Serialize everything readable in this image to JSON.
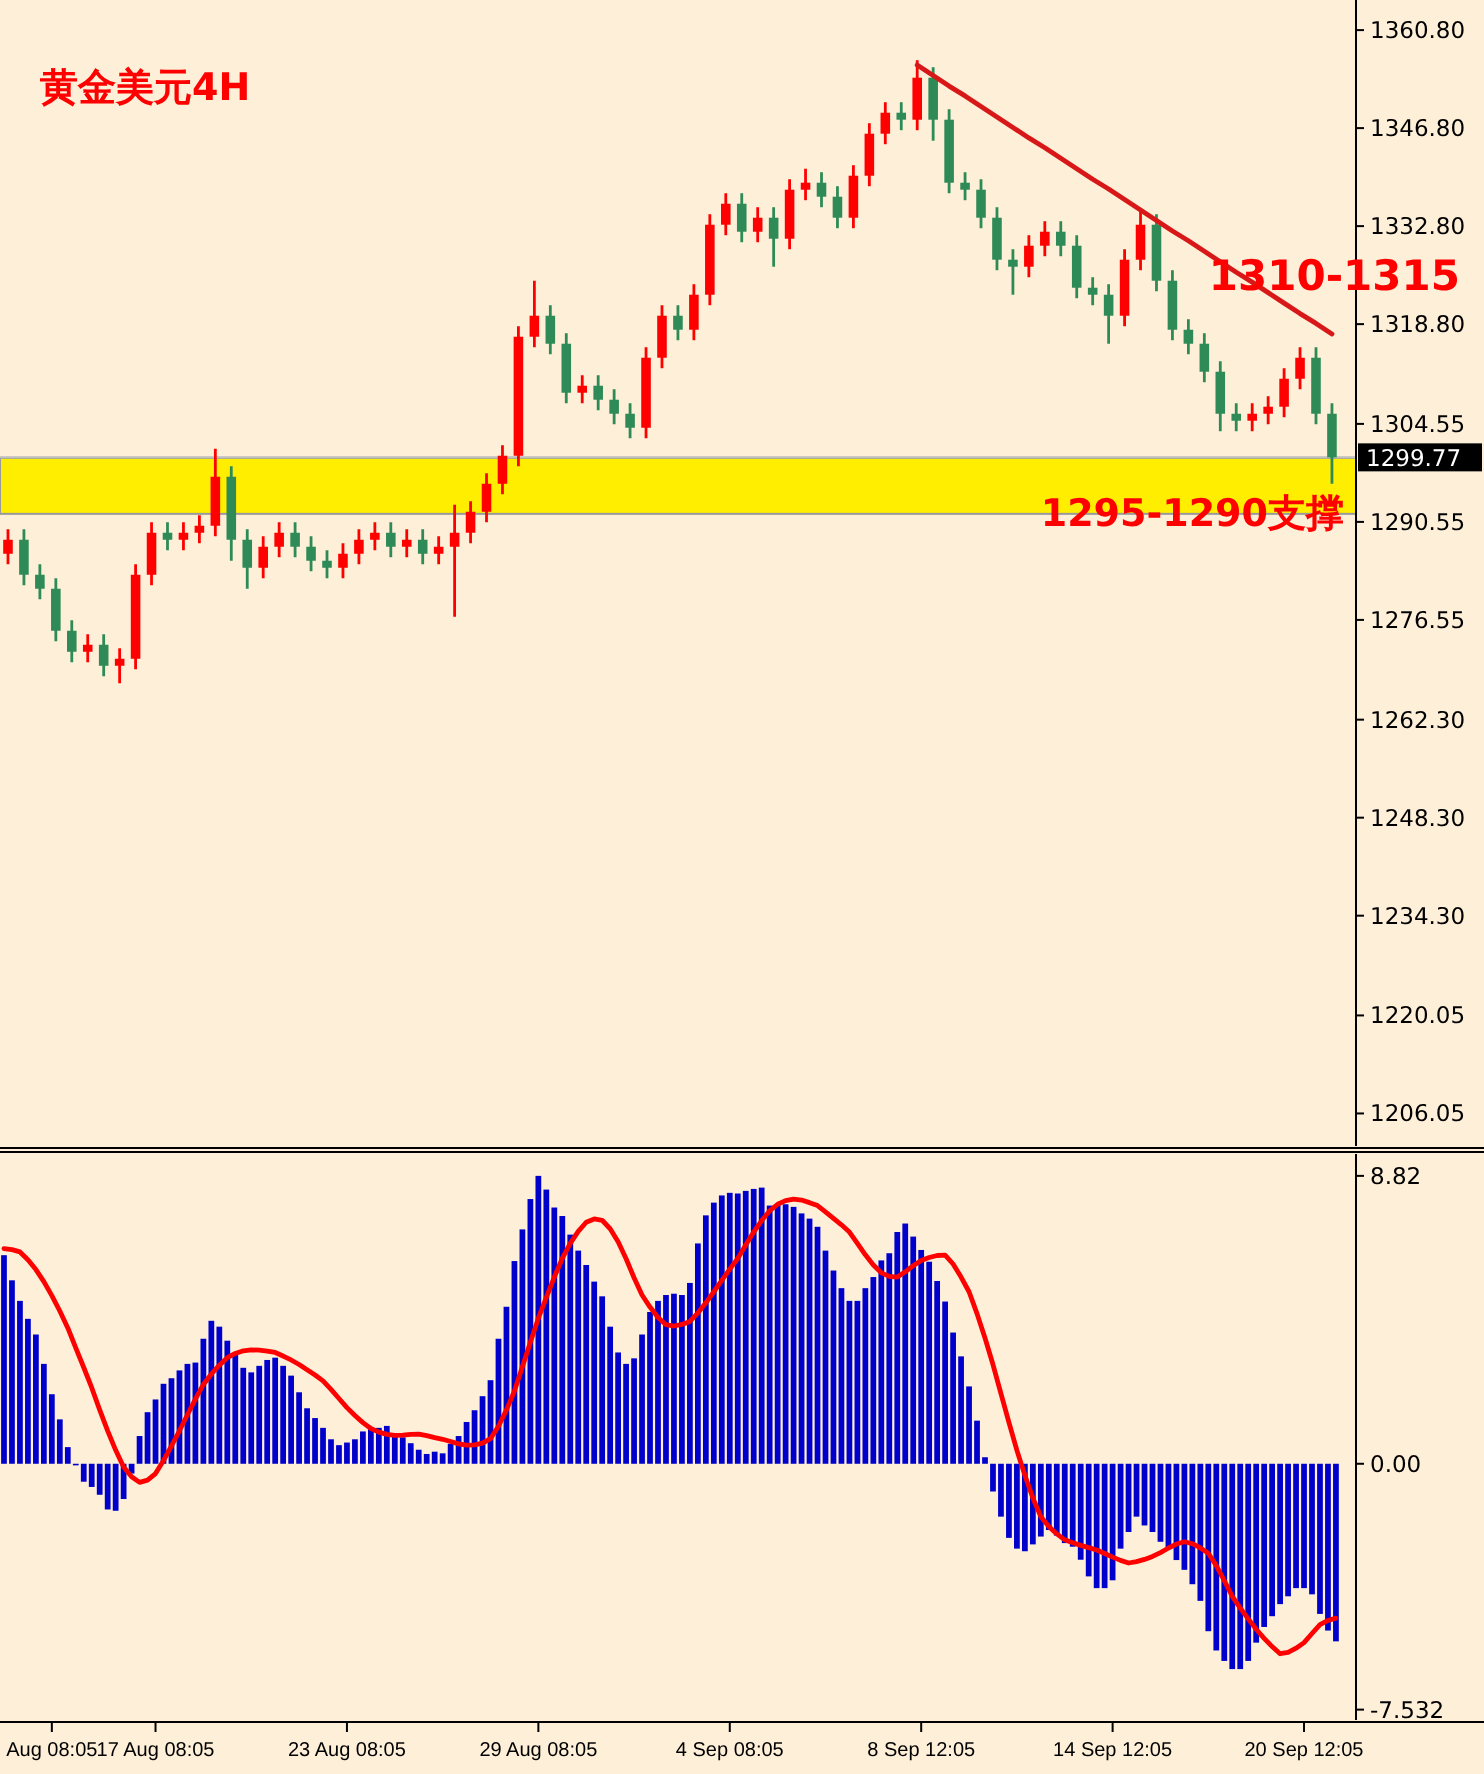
{
  "chart_data": [
    {
      "type": "candlestick",
      "title": "黄金美元4H",
      "annotations": [
        "1310-1315"
      ],
      "categories": [
        null,
        null,
        null,
        null,
        null,
        null,
        null,
        null,
        null,
        null,
        null,
        null,
        null,
        null,
        null,
        null,
        null,
        null,
        null,
        null,
        null,
        null,
        null,
        null,
        null,
        null,
        null,
        null,
        null,
        null,
        null,
        null,
        null,
        null,
        null,
        null,
        null,
        null,
        null,
        null,
        null,
        null,
        null,
        null,
        null,
        null,
        null,
        null,
        null,
        null,
        null,
        null,
        null,
        null,
        null,
        null,
        null,
        null,
        null,
        null,
        null,
        null,
        null,
        null,
        null,
        null,
        null,
        null,
        null,
        null,
        null,
        null,
        null,
        null,
        null,
        null,
        null,
        null,
        null,
        null,
        null,
        null,
        null,
        null
      ],
      "ylim": [
        1201.4,
        1365.1
      ],
      "tick_labels": "y",
      "yticks": [
        {
          "value": 1360.8,
          "label": "1360.80"
        },
        {
          "value": 1346.8,
          "label": "1346.80"
        },
        {
          "value": 1332.8,
          "label": "1332.80"
        },
        {
          "value": 1318.8,
          "label": "1318.80"
        },
        1304.55,
        1290.55,
        1276.55,
        {
          "value": 1262.3,
          "label": "1262.30"
        },
        {
          "value": 1248.3,
          "label": "1248.30"
        },
        {
          "value": 1234.3,
          "label": "1234.30"
        },
        1220.05,
        1206.05
      ],
      "ref_lines": [
        {
          "axis": "y",
          "value": 1299.77,
          "label": "1299.77",
          "color": "#c0c0c0"
        }
      ],
      "bands": [
        {
          "axis": "y",
          "from": 1291.7,
          "to": 1299.7,
          "label": "1295-1290支撑",
          "color": "#ffee00"
        }
      ],
      "series": [
        {
          "ohlc": [
            [
              1286,
              1289.5,
              1284.5,
              1288
            ],
            [
              1288,
              1289.5,
              1281.5,
              1283
            ],
            [
              1283,
              1284.5,
              1279.5,
              1281
            ],
            [
              1281,
              1282.5,
              1273.5,
              1275
            ],
            [
              1275,
              1276.5,
              1270.5,
              1272
            ],
            [
              1272,
              1274.5,
              1270.5,
              1273
            ],
            [
              1273,
              1274.5,
              1268.5,
              1270
            ],
            [
              1270,
              1272.5,
              1267.5,
              1271
            ],
            [
              1271,
              1284.5,
              1269.5,
              1283
            ],
            [
              1283,
              1290.5,
              1281.5,
              1289
            ],
            [
              1289,
              1290.5,
              1286.5,
              1288
            ],
            [
              1288,
              1290.5,
              1286.5,
              1289
            ],
            [
              1289,
              1291.5,
              1287.5,
              1290
            ],
            [
              1290,
              1301,
              1288.5,
              1297
            ],
            [
              1297,
              1298.5,
              1285,
              1288
            ],
            [
              1288,
              1289.5,
              1281,
              1284
            ],
            [
              1284,
              1288.5,
              1282.5,
              1287
            ],
            [
              1287,
              1290.5,
              1285.5,
              1289
            ],
            [
              1289,
              1290.5,
              1285.5,
              1287
            ],
            [
              1287,
              1288.5,
              1283.5,
              1285
            ],
            [
              1285,
              1286.5,
              1282.5,
              1284
            ],
            [
              1284,
              1287.5,
              1282.5,
              1286
            ],
            [
              1286,
              1289.5,
              1284.5,
              1288
            ],
            [
              1288,
              1290.5,
              1286.5,
              1289
            ],
            [
              1289,
              1290.5,
              1285.5,
              1287
            ],
            [
              1287,
              1289.5,
              1285.5,
              1288
            ],
            [
              1288,
              1289.5,
              1284.5,
              1286
            ],
            [
              1286,
              1288.5,
              1284.5,
              1287
            ],
            [
              1287,
              1293,
              1277,
              1289
            ],
            [
              1289,
              1293.5,
              1287.5,
              1292
            ],
            [
              1292,
              1297.5,
              1290.5,
              1296
            ],
            [
              1296,
              1301.5,
              1294.5,
              1300
            ],
            [
              1300,
              1318.5,
              1298.5,
              1317
            ],
            [
              1317,
              1325,
              1315.5,
              1320
            ],
            [
              1320,
              1321.5,
              1314.5,
              1316
            ],
            [
              1316,
              1317.5,
              1307.5,
              1309
            ],
            [
              1309,
              1311.5,
              1307.5,
              1310
            ],
            [
              1310,
              1311.5,
              1306.5,
              1308
            ],
            [
              1308,
              1309.5,
              1304.5,
              1306
            ],
            [
              1306,
              1307.5,
              1302.5,
              1304
            ],
            [
              1304,
              1315.5,
              1302.5,
              1314
            ],
            [
              1314,
              1321.5,
              1312.5,
              1320
            ],
            [
              1320,
              1321.5,
              1316.5,
              1318
            ],
            [
              1318,
              1324.5,
              1316.5,
              1323
            ],
            [
              1323,
              1334.5,
              1321.5,
              1333
            ],
            [
              1333,
              1337.5,
              1331.5,
              1336
            ],
            [
              1336,
              1337.5,
              1330.5,
              1332
            ],
            [
              1332,
              1335.5,
              1330.5,
              1334
            ],
            [
              1334,
              1335.5,
              1327,
              1331
            ],
            [
              1331,
              1339.5,
              1329.5,
              1338
            ],
            [
              1338,
              1341,
              1336.5,
              1339
            ],
            [
              1339,
              1340.5,
              1335.5,
              1337
            ],
            [
              1337,
              1338.5,
              1332.5,
              1334
            ],
            [
              1334,
              1341.5,
              1332.5,
              1340
            ],
            [
              1340,
              1347.5,
              1338.5,
              1346
            ],
            [
              1346,
              1350.5,
              1344.5,
              1349
            ],
            [
              1349,
              1350.5,
              1346.5,
              1348
            ],
            [
              1348,
              1356.5,
              1346.5,
              1354
            ],
            [
              1354,
              1355.5,
              1345,
              1348
            ],
            [
              1348,
              1349.5,
              1337.5,
              1339
            ],
            [
              1339,
              1340.5,
              1336.5,
              1338
            ],
            [
              1338,
              1339.5,
              1332.5,
              1334
            ],
            [
              1334,
              1335.5,
              1326.5,
              1328
            ],
            [
              1328,
              1329.5,
              1323,
              1327
            ],
            [
              1327,
              1331.5,
              1325.5,
              1330
            ],
            [
              1330,
              1333.5,
              1328.5,
              1332
            ],
            [
              1332,
              1333.5,
              1328.5,
              1330
            ],
            [
              1330,
              1331.5,
              1322.5,
              1324
            ],
            [
              1324,
              1325.5,
              1321.5,
              1323
            ],
            [
              1323,
              1324.5,
              1316,
              1320
            ],
            [
              1320,
              1329.5,
              1318.5,
              1328
            ],
            [
              1328,
              1335,
              1326.5,
              1333
            ],
            [
              1333,
              1334.5,
              1323.5,
              1325
            ],
            [
              1325,
              1326.5,
              1316.5,
              1318
            ],
            [
              1318,
              1319.5,
              1314.5,
              1316
            ],
            [
              1316,
              1317.5,
              1310.5,
              1312
            ],
            [
              1312,
              1313.5,
              1303.5,
              1306
            ],
            [
              1306,
              1307.5,
              1303.5,
              1305
            ],
            [
              1305,
              1307.5,
              1303.5,
              1306
            ],
            [
              1306,
              1308.5,
              1304.5,
              1307
            ],
            [
              1307,
              1312.5,
              1305.5,
              1311
            ],
            [
              1311,
              1315.5,
              1309.5,
              1314
            ],
            [
              1314,
              1315.5,
              1304.5,
              1306
            ],
            [
              1306,
              1307.5,
              1296,
              1299.77
            ]
          ],
          "colors": [
            "#ff0000",
            "#2e8b57",
            "#2e8b57",
            "#2e8b57",
            "#2e8b57",
            "#ff0000",
            "#2e8b57",
            "#ff0000",
            "#ff0000",
            "#ff0000",
            "#2e8b57",
            "#ff0000",
            "#ff0000",
            "#ff0000",
            "#2e8b57",
            "#2e8b57",
            "#ff0000",
            "#ff0000",
            "#2e8b57",
            "#2e8b57",
            "#2e8b57",
            "#ff0000",
            "#ff0000",
            "#ff0000",
            "#2e8b57",
            "#ff0000",
            "#2e8b57",
            "#ff0000",
            "#ff0000",
            "#ff0000",
            "#ff0000",
            "#ff0000",
            "#ff0000",
            "#ff0000",
            "#2e8b57",
            "#2e8b57",
            "#ff0000",
            "#2e8b57",
            "#2e8b57",
            "#2e8b57",
            "#ff0000",
            "#ff0000",
            "#2e8b57",
            "#ff0000",
            "#ff0000",
            "#ff0000",
            "#2e8b57",
            "#ff0000",
            "#2e8b57",
            "#ff0000",
            "#ff0000",
            "#2e8b57",
            "#2e8b57",
            "#ff0000",
            "#ff0000",
            "#ff0000",
            "#2e8b57",
            "#ff0000",
            "#2e8b57",
            "#2e8b57",
            "#2e8b57",
            "#2e8b57",
            "#2e8b57",
            "#2e8b57",
            "#ff0000",
            "#ff0000",
            "#2e8b57",
            "#2e8b57",
            "#2e8b57",
            "#2e8b57",
            "#ff0000",
            "#ff0000",
            "#2e8b57",
            "#2e8b57",
            "#2e8b57",
            "#2e8b57",
            "#2e8b57",
            "#2e8b57",
            "#ff0000",
            "#ff0000",
            "#ff0000",
            "#ff0000",
            "#2e8b57",
            "#2e8b57"
          ]
        },
        {
          "type": "line",
          "color": "#d81818",
          "values": [
            null,
            null,
            null,
            null,
            null,
            null,
            null,
            null,
            null,
            null,
            null,
            null,
            null,
            null,
            null,
            null,
            null,
            null,
            null,
            null,
            null,
            null,
            null,
            null,
            null,
            null,
            null,
            null,
            null,
            null,
            null,
            null,
            null,
            null,
            null,
            null,
            null,
            null,
            null,
            null,
            null,
            null,
            null,
            null,
            null,
            null,
            null,
            null,
            null,
            null,
            null,
            null,
            null,
            null,
            null,
            null,
            null,
            1355.8,
            1354.3,
            1352.8,
            1351.4,
            1349.9,
            1348.4,
            1346.9,
            1345.4,
            1344.0,
            1342.5,
            1341.0,
            1339.5,
            1338.1,
            1336.6,
            1335.1,
            1333.6,
            1332.1,
            1330.7,
            1329.2,
            1327.7,
            1326.2,
            1324.8,
            1323.3,
            1321.8,
            1320.3,
            1318.9,
            1317.4
          ]
        }
      ]
    },
    {
      "type": "bar",
      "ylim": [
        -7.85,
        9.49
      ],
      "yticks": [
        8.82,
        {
          "value": 0,
          "label": "0.00"
        },
        -7.532
      ],
      "categories": [
        null,
        null,
        null,
        null,
        null,
        null,
        "Aug 08:05",
        null,
        null,
        null,
        null,
        null,
        null,
        null,
        null,
        null,
        null,
        null,
        null,
        "17 Aug 08:05",
        null,
        null,
        null,
        null,
        null,
        null,
        null,
        null,
        null,
        null,
        null,
        null,
        null,
        null,
        null,
        null,
        null,
        null,
        null,
        null,
        null,
        null,
        null,
        "23 Aug 08:05",
        null,
        null,
        null,
        null,
        null,
        null,
        null,
        null,
        null,
        null,
        null,
        null,
        null,
        null,
        null,
        null,
        null,
        null,
        null,
        null,
        null,
        null,
        null,
        "29 Aug 08:05",
        null,
        null,
        null,
        null,
        null,
        null,
        null,
        null,
        null,
        null,
        null,
        null,
        null,
        null,
        null,
        null,
        null,
        null,
        null,
        null,
        null,
        null,
        null,
        "4 Sep 08:05",
        null,
        null,
        null,
        null,
        null,
        null,
        null,
        null,
        null,
        null,
        null,
        null,
        null,
        null,
        null,
        null,
        null,
        null,
        null,
        null,
        null,
        null,
        null,
        "8 Sep 12:05",
        null,
        null,
        null,
        null,
        null,
        null,
        null,
        null,
        null,
        null,
        null,
        null,
        null,
        null,
        null,
        null,
        null,
        null,
        null,
        null,
        null,
        null,
        null,
        "14 Sep 12:05",
        null,
        null,
        null,
        null,
        null,
        null,
        null,
        null,
        null,
        null,
        null,
        null,
        null,
        null,
        null,
        null,
        null,
        null,
        null,
        null,
        null,
        null,
        null,
        "20 Sep 12:05",
        null,
        null,
        null,
        null
      ],
      "series": [
        {
          "color": "#0000cc",
          "values": [
            6.39,
            5.62,
            4.99,
            4.44,
            3.96,
            3.06,
            2.13,
            1.36,
            0.51,
            -0.04,
            -0.55,
            -0.71,
            -0.95,
            -1.4,
            -1.44,
            -1.08,
            -0.3,
            0.85,
            1.58,
            1.97,
            2.45,
            2.62,
            2.86,
            3.06,
            3.1,
            3.83,
            4.38,
            4.2,
            3.77,
            3.35,
            2.94,
            2.8,
            3.0,
            3.18,
            3.25,
            3.0,
            2.7,
            2.19,
            1.7,
            1.4,
            1.1,
            0.75,
            0.57,
            0.65,
            0.75,
            0.99,
            1.1,
            1.1,
            1.16,
            0.87,
            0.81,
            0.63,
            0.43,
            0.3,
            0.37,
            0.32,
            0.61,
            0.85,
            1.28,
            1.64,
            2.07,
            2.56,
            3.83,
            4.81,
            6.21,
            7.18,
            8.11,
            8.82,
            8.4,
            7.85,
            7.59,
            7.02,
            6.53,
            6.09,
            5.58,
            5.13,
            4.2,
            3.41,
            3.06,
            3.23,
            3.96,
            4.65,
            4.99,
            5.17,
            5.21,
            5.17,
            5.54,
            6.75,
            7.61,
            8.0,
            8.22,
            8.3,
            8.28,
            8.36,
            8.42,
            8.46,
            7.91,
            7.95,
            7.95,
            7.87,
            7.67,
            7.51,
            7.26,
            6.53,
            5.92,
            5.38,
            4.99,
            4.99,
            5.38,
            5.72,
            6.23,
            6.45,
            7.1,
            7.36,
            6.96,
            6.55,
            6.19,
            5.6,
            4.97,
            4.02,
            3.29,
            2.37,
            1.32,
            0.2,
            -0.85,
            -1.62,
            -2.27,
            -2.6,
            -2.68,
            -2.47,
            -2.23,
            -2.03,
            -2.2,
            -2.43,
            -2.54,
            -2.94,
            -3.45,
            -3.81,
            -3.81,
            -3.57,
            -2.6,
            -2.09,
            -1.62,
            -1.89,
            -2.09,
            -2.39,
            -2.58,
            -2.95,
            -3.25,
            -3.69,
            -4.2,
            -5.13,
            -5.72,
            -6.04,
            -6.29,
            -6.29,
            -6.04,
            -5.48,
            -5.0,
            -4.67,
            -4.3,
            -4.06,
            -3.81,
            -3.81,
            -4.0,
            -4.6,
            -5.11,
            -5.44
          ]
        },
        {
          "type": "line",
          "color": "#ff0000",
          "values": [
            6.59,
            6.56,
            6.49,
            6.25,
            5.95,
            5.58,
            5.15,
            4.68,
            4.16,
            3.55,
            2.95,
            2.33,
            1.65,
            1.01,
            0.42,
            -0.1,
            -0.4,
            -0.57,
            -0.5,
            -0.3,
            0.1,
            0.55,
            1.01,
            1.5,
            1.98,
            2.43,
            2.75,
            3.02,
            3.25,
            3.38,
            3.46,
            3.49,
            3.48,
            3.45,
            3.41,
            3.3,
            3.18,
            3.04,
            2.88,
            2.72,
            2.54,
            2.28,
            2.0,
            1.72,
            1.48,
            1.26,
            1.08,
            0.97,
            0.9,
            0.87,
            0.88,
            0.9,
            0.91,
            0.86,
            0.8,
            0.75,
            0.68,
            0.61,
            0.57,
            0.58,
            0.63,
            0.77,
            1.15,
            1.65,
            2.23,
            2.97,
            3.72,
            4.46,
            5.1,
            5.72,
            6.29,
            6.75,
            7.12,
            7.4,
            7.5,
            7.46,
            7.2,
            6.8,
            6.28,
            5.7,
            5.17,
            4.8,
            4.48,
            4.26,
            4.22,
            4.27,
            4.36,
            4.62,
            4.93,
            5.27,
            5.62,
            5.96,
            6.29,
            6.7,
            7.1,
            7.45,
            7.75,
            7.95,
            8.06,
            8.11,
            8.08,
            8.0,
            7.91,
            7.72,
            7.52,
            7.32,
            7.1,
            6.75,
            6.4,
            6.09,
            5.85,
            5.74,
            5.72,
            5.88,
            6.07,
            6.23,
            6.32,
            6.38,
            6.39,
            6.12,
            5.72,
            5.27,
            4.6,
            3.85,
            3.04,
            2.15,
            1.27,
            0.41,
            -0.35,
            -1.05,
            -1.62,
            -1.92,
            -2.15,
            -2.33,
            -2.42,
            -2.5,
            -2.57,
            -2.64,
            -2.75,
            -2.86,
            -2.96,
            -3.04,
            -3.0,
            -2.93,
            -2.84,
            -2.72,
            -2.58,
            -2.46,
            -2.39,
            -2.45,
            -2.58,
            -2.74,
            -3.12,
            -3.58,
            -4.06,
            -4.42,
            -4.75,
            -5.07,
            -5.35,
            -5.6,
            -5.82,
            -5.78,
            -5.65,
            -5.48,
            -5.2,
            -4.93,
            -4.8,
            -4.73
          ]
        }
      ]
    }
  ]
}
